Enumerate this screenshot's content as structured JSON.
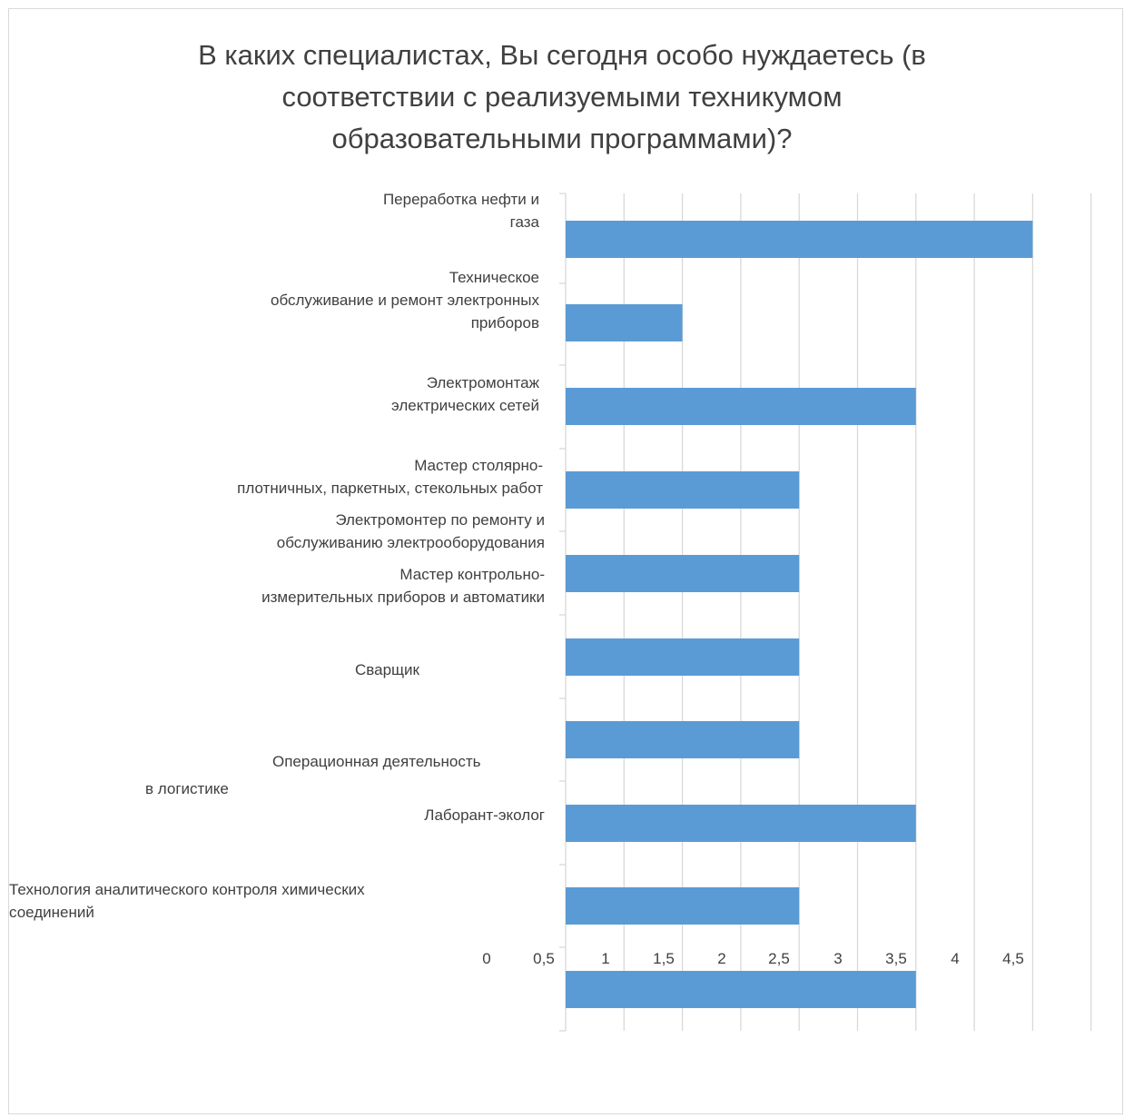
{
  "chart_data": {
    "type": "bar",
    "orientation": "horizontal",
    "title": "В каких специалистах, Вы сегодня особо нуждаетесь (в соответствии с реализуемыми техникумом образовательными программами)?",
    "categories": [
      "Переработка нефти и газа",
      "Техническое обслуживание и ремонт электронных приборов",
      "Электромонтаж электрических сетей",
      "Мастер столярно-плотничных, паркетных, стекольных работ",
      "Электромонтер по ремонту и обслуживанию электрооборудования",
      "Мастер контрольно-измерительных приборов и автоматики",
      "Сварщик",
      "Операционная деятельность в логистике",
      "Лаборант-эколог",
      "Технология аналитического контроля химических соединений"
    ],
    "values": [
      4,
      1,
      3,
      2,
      2,
      2,
      2,
      3,
      2,
      3
    ],
    "xlim": [
      0,
      4.5
    ],
    "x_ticks": [
      "0",
      "0,5",
      "1",
      "1,5",
      "2",
      "2,5",
      "3",
      "3,5",
      "4",
      "4,5"
    ],
    "grid": true,
    "bar_color": "#5b9bd5",
    "grid_color": "#d9d9d9",
    "text_color": "#404040"
  },
  "labels": {
    "title_lines": "В каких специалистах, Вы сегодня особо нуждаетесь (в\nсоответствии с реализуемыми техникумом\nобразовательными программами)?",
    "cat0": "Переработка нефти и\nгаза",
    "cat1": "Техническое\nобслуживание и ремонт электронных\nприборов",
    "cat2": "Электромонтаж\nэлектрических сетей",
    "cat3": "Мастер столярно-\nплотничных, паркетных, стекольных работ",
    "cat4": "Электромонтер по ремонту и\nобслуживанию электрооборудования",
    "cat5": "Мастер контрольно-\nизмерительных приборов и автоматики",
    "cat6": "Сварщик",
    "cat7a": "Операционная деятельность",
    "cat7b": "в логистике",
    "cat8": "Лаборант-эколог",
    "cat9": "Технология аналитического контроля химических\nсоединений"
  }
}
